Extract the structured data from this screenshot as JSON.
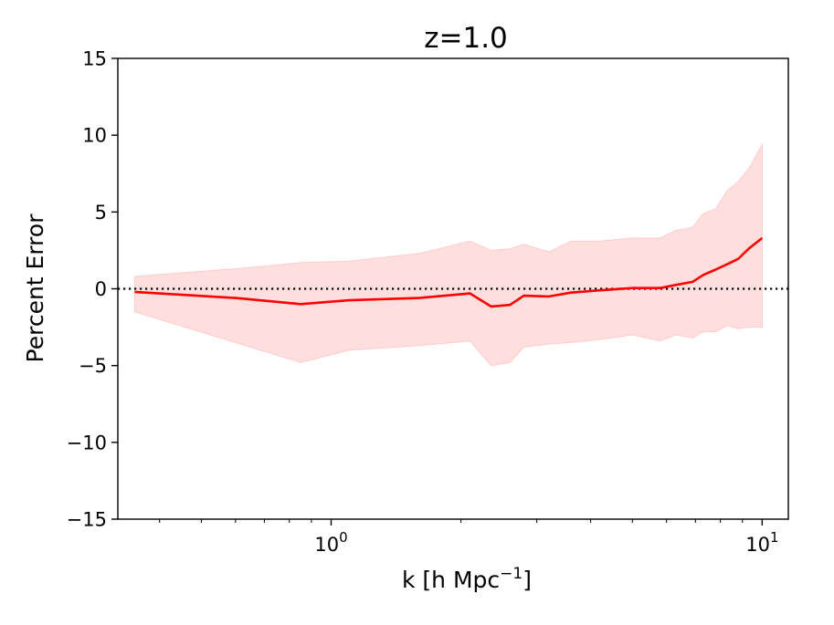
{
  "chart_data": {
    "type": "line",
    "title": "z=1.0",
    "xlabel": "k [h Mpc",
    "xlabel_sup": "−1",
    "xlabel_close": "]",
    "ylabel": "Percent Error",
    "xscale": "log",
    "xlim": [
      0.32,
      11.5
    ],
    "ylim": [
      -15,
      15
    ],
    "yticks": [
      {
        "value": 15,
        "label": "15"
      },
      {
        "value": 10,
        "label": "10"
      },
      {
        "value": 5,
        "label": "5"
      },
      {
        "value": 0,
        "label": "0"
      },
      {
        "value": -5,
        "label": "−5"
      },
      {
        "value": -10,
        "label": "−10"
      },
      {
        "value": -15,
        "label": "−15"
      }
    ],
    "xticks_major": [
      {
        "value": 1,
        "base": "10",
        "exp": "0"
      },
      {
        "value": 10,
        "base": "10",
        "exp": "1"
      }
    ],
    "xticks_minor": [
      0.4,
      0.5,
      0.6,
      0.7,
      0.8,
      0.9,
      2,
      3,
      4,
      5,
      6,
      7,
      8,
      9
    ],
    "reference_line": {
      "y": 0,
      "style": "dotted",
      "color": "#000000"
    },
    "series": [
      {
        "name": "mean error",
        "color": "#ff0000",
        "x": [
          0.35,
          0.6,
          0.85,
          1.1,
          1.6,
          2.1,
          2.35,
          2.6,
          2.8,
          3.2,
          3.6,
          4.2,
          5.0,
          5.8,
          6.3,
          6.9,
          7.3,
          7.8,
          8.3,
          8.8,
          9.3,
          10.0
        ],
        "y": [
          -0.2,
          -0.6,
          -1.0,
          -0.75,
          -0.6,
          -0.3,
          -1.15,
          -1.05,
          -0.45,
          -0.5,
          -0.25,
          -0.1,
          0.05,
          0.05,
          0.25,
          0.45,
          0.9,
          1.25,
          1.6,
          1.95,
          2.6,
          3.3
        ]
      }
    ],
    "band": {
      "name": "error range",
      "color": "#ffcccc",
      "opacity": 0.65,
      "x": [
        0.35,
        0.6,
        0.85,
        1.1,
        1.6,
        2.1,
        2.35,
        2.6,
        2.8,
        3.2,
        3.6,
        4.2,
        5.0,
        5.8,
        6.3,
        6.9,
        7.3,
        7.8,
        8.3,
        8.8,
        9.3,
        10.0
      ],
      "upper": [
        0.8,
        1.3,
        1.7,
        1.8,
        2.3,
        3.1,
        2.5,
        2.6,
        2.9,
        2.4,
        3.1,
        3.1,
        3.3,
        3.3,
        3.8,
        4.0,
        4.9,
        5.2,
        6.4,
        7.0,
        7.8,
        9.4
      ],
      "lower": [
        -1.5,
        -3.5,
        -4.8,
        -4.0,
        -3.7,
        -3.4,
        -5.0,
        -4.8,
        -3.8,
        -3.6,
        -3.5,
        -3.3,
        -3.0,
        -3.4,
        -3.0,
        -3.2,
        -2.8,
        -2.8,
        -2.4,
        -2.6,
        -2.5,
        -2.5
      ]
    }
  }
}
